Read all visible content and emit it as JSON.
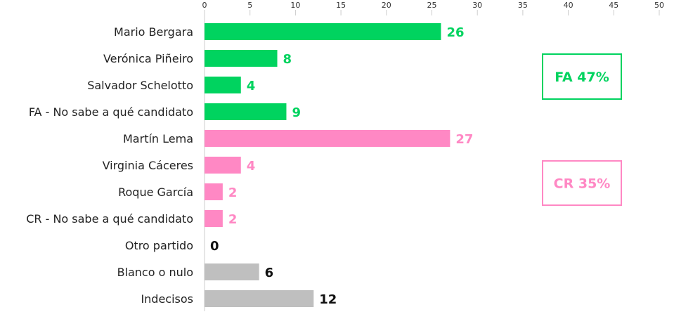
{
  "chart_data": {
    "type": "bar",
    "orientation": "horizontal",
    "xlim": [
      0,
      50
    ],
    "xticks": [
      0,
      5,
      10,
      15,
      20,
      25,
      30,
      35,
      40,
      45,
      50
    ],
    "grid": false,
    "categories": [
      "Mario Bergara",
      "Verónica Piñeiro",
      "Salvador Schelotto",
      "FA - No sabe a qué candidato",
      "Martín Lema",
      "Virginia Cáceres",
      "Roque García",
      "CR - No sabe a qué candidato",
      "Otro partido",
      "Blanco o nulo",
      "Indecisos"
    ],
    "values": [
      26,
      8,
      4,
      9,
      27,
      4,
      2,
      2,
      0,
      6,
      12
    ],
    "value_labels": [
      "26",
      "8",
      "4",
      "9",
      "27",
      "4",
      "2",
      "2",
      "0",
      "6",
      "12"
    ],
    "bar_colors": [
      "#00d35f",
      "#00d35f",
      "#00d35f",
      "#00d35f",
      "#ff88c4",
      "#ff88c4",
      "#ff88c4",
      "#ff88c4",
      "#111111",
      "#bfbfbf",
      "#bfbfbf"
    ],
    "label_colors": [
      "#00d35f",
      "#00d35f",
      "#00d35f",
      "#00d35f",
      "#ff88c4",
      "#ff88c4",
      "#ff88c4",
      "#ff88c4",
      "#111111",
      "#111111",
      "#111111"
    ],
    "annotations": [
      {
        "text": "FA 47%",
        "color": "#00d35f"
      },
      {
        "text": "CR 35%",
        "color": "#ff88c4"
      }
    ]
  }
}
